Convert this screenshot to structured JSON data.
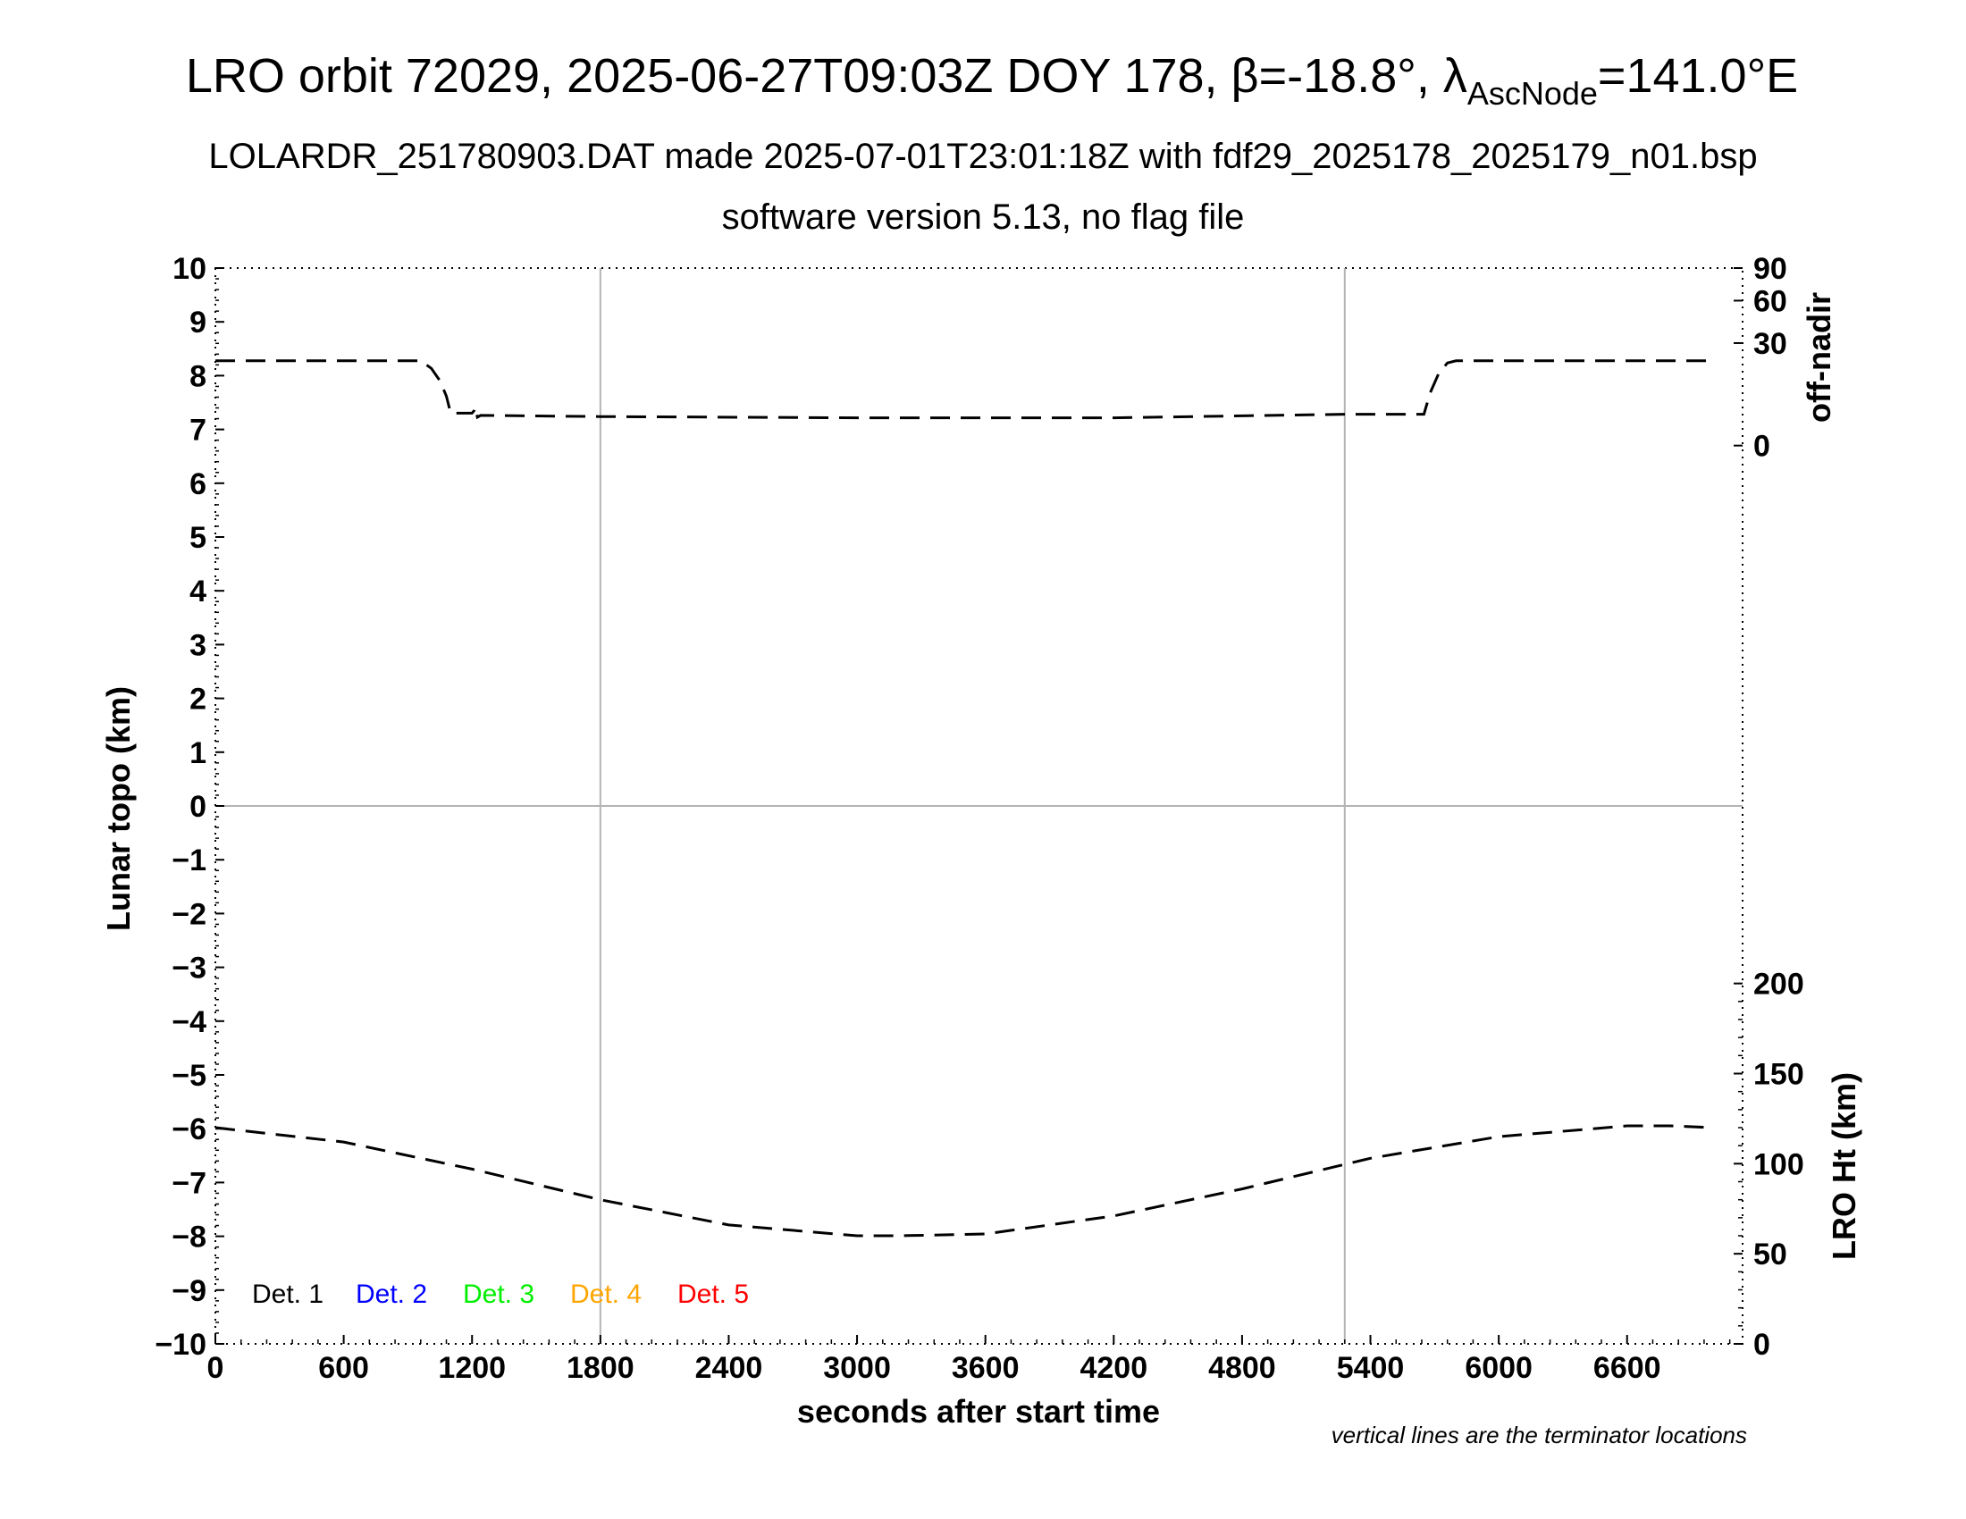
{
  "chart_data": {
    "type": "line",
    "title": {
      "prefix": "LRO orbit 72029, 2025-06-27T09:03Z DOY 178, ",
      "beta_symbol": "β",
      "beta_value": "=-18.8°, ",
      "lambda_symbol": "λ",
      "lambda_subscript": "AscNode",
      "lambda_value": "=141.0°E"
    },
    "subtitle_lines": [
      "LOLARDR_251780903.DAT made 2025-07-01T23:01:18Z with fdf29_2025178_2025179_n01.bsp",
      "software version 5.13, no flag file"
    ],
    "xlabel": "seconds after start time",
    "ylabel_left": "Lunar topo (km)",
    "ylabel_right_top": "off-nadir",
    "ylabel_right_bottom": "LRO Ht (km)",
    "note": "vertical lines are the terminator locations",
    "xlim": [
      0,
      7140
    ],
    "ylim_left": [
      -10,
      10
    ],
    "x_ticks": [
      "0",
      "600",
      "1200",
      "1800",
      "2400",
      "3000",
      "3600",
      "4200",
      "4800",
      "5400",
      "6000",
      "6600"
    ],
    "x_tick_values": [
      0,
      600,
      1200,
      1800,
      2400,
      3000,
      3600,
      4200,
      4800,
      5400,
      6000,
      6600
    ],
    "y_ticks_left": [
      "10",
      "9",
      "8",
      "7",
      "6",
      "5",
      "4",
      "3",
      "2",
      "1",
      "0",
      "−1",
      "−2",
      "−3",
      "−4",
      "−5",
      "−6",
      "−7",
      "−8",
      "−9",
      "−10"
    ],
    "y_tick_values_left": [
      10,
      9,
      8,
      7,
      6,
      5,
      4,
      3,
      2,
      1,
      0,
      -1,
      -2,
      -3,
      -4,
      -5,
      -6,
      -7,
      -8,
      -9,
      -10
    ],
    "right_top_ticks": [
      "90",
      "60",
      "30",
      "0"
    ],
    "right_top_tick_values": [
      90,
      60,
      30,
      0
    ],
    "right_bottom_ticks": [
      "200",
      "150",
      "100",
      "50",
      "0"
    ],
    "right_bottom_tick_values": [
      200,
      150,
      100,
      50,
      0
    ],
    "terminator_x": [
      1800,
      5280
    ],
    "grid": "terminator lines and zero line only",
    "legend": [
      {
        "label": "Det. 1",
        "color": "#000000"
      },
      {
        "label": "Det. 2",
        "color": "#0000ff"
      },
      {
        "label": "Det. 3",
        "color": "#00ee00"
      },
      {
        "label": "Det. 4",
        "color": "#ffa500"
      },
      {
        "label": "Det. 5",
        "color": "#ff0000"
      }
    ],
    "legend_position": "bottom-left",
    "series": [
      {
        "axis": "off-nadir (deg, right top)",
        "style": "dashed",
        "color": "#000000",
        "x": [
          0,
          960,
          1010,
          1050,
          1080,
          1100,
          1200,
          1210,
          1215,
          1225,
          1240,
          1800,
          3000,
          4200,
          5280,
          5650,
          5680,
          5720,
          5760,
          5800,
          5850,
          7000
        ],
        "y": [
          20.5,
          20.5,
          17,
          12,
          7,
          3,
          3,
          3.5,
          4.2,
          2.3,
          2.6,
          2.4,
          2.2,
          2.2,
          2.8,
          2.8,
          8,
          15,
          19.5,
          20.5,
          20.5,
          20.5
        ]
      },
      {
        "axis": "LRO Ht (km, right bottom)",
        "style": "dashed",
        "color": "#000000",
        "x": [
          0,
          600,
          1200,
          1800,
          2400,
          3000,
          3200,
          3600,
          4200,
          4800,
          5400,
          6000,
          6600,
          6800,
          7000
        ],
        "y": [
          120,
          112,
          97,
          80,
          66,
          60,
          60,
          61,
          71,
          86,
          103,
          115,
          121,
          121,
          120
        ]
      }
    ]
  }
}
